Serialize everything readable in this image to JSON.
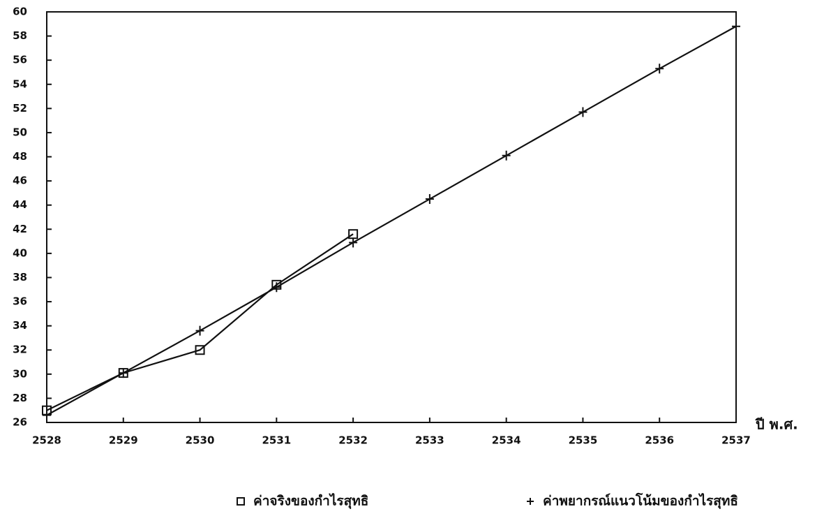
{
  "chart_data": {
    "type": "line",
    "x": [
      2528,
      2529,
      2530,
      2531,
      2532,
      2533,
      2534,
      2535,
      2536,
      2537
    ],
    "x_label": "ปี พ.ศ.",
    "series": [
      {
        "name": "ค่าจริงของกำไรสุทธิ",
        "color": "#111111",
        "marker": "square",
        "values": [
          27,
          30.1,
          32,
          37.4,
          41.6,
          null,
          null,
          null,
          null,
          null
        ]
      },
      {
        "name": "ค่าพยากรณ์แนวโน้มของกำไรสุทธิ",
        "color": "#111111",
        "marker": "plus",
        "values": [
          26.6,
          30.1,
          33.6,
          37.2,
          40.9,
          44.5,
          48.1,
          51.7,
          55.3,
          58.8
        ]
      }
    ],
    "xlim": [
      2528,
      2537
    ],
    "xticks": [
      2528,
      2529,
      2530,
      2531,
      2532,
      2533,
      2534,
      2535,
      2536,
      2537
    ],
    "ylim": [
      26,
      60
    ],
    "yticks": [
      26,
      28,
      30,
      32,
      34,
      36,
      38,
      40,
      42,
      44,
      46,
      48,
      50,
      52,
      54,
      56,
      58,
      60
    ],
    "grid": false
  }
}
